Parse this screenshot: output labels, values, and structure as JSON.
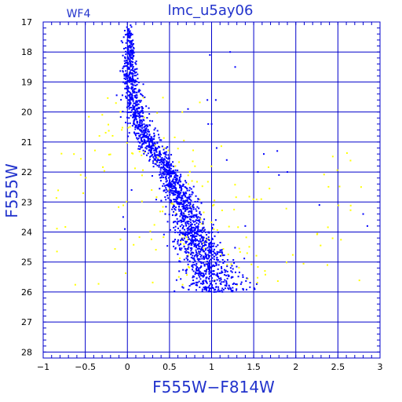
{
  "chart_data": {
    "type": "scatter",
    "title": "lmc_u5ay06",
    "panel_label": "WF4",
    "xlabel": "F555W−F814W",
    "ylabel": "F555W",
    "xlim": [
      -1,
      3
    ],
    "ylim": [
      28.2,
      17
    ],
    "y_inverted": true,
    "grid": true,
    "x_ticks": [
      -1,
      -0.5,
      0,
      0.5,
      1,
      1.5,
      2,
      2.5,
      3
    ],
    "x_tick_labels": [
      "−1",
      "−0.5",
      "0",
      "0.5",
      "1",
      "1.5",
      "2",
      "2.5",
      "3"
    ],
    "y_ticks": [
      17,
      18,
      19,
      20,
      21,
      22,
      23,
      24,
      25,
      26,
      27,
      28
    ],
    "y_tick_labels": [
      "17",
      "18",
      "19",
      "20",
      "21",
      "22",
      "23",
      "24",
      "25",
      "26",
      "27",
      "28"
    ],
    "colors": {
      "axes": "#0000cc",
      "main_stars": "#0000ff",
      "secondary_stars": "#ffff00",
      "text": "#2233cc"
    },
    "series": [
      {
        "color": "#0000ff",
        "points_ridge": [
          [
            0.0,
            17.1
          ],
          [
            0.02,
            17.6
          ],
          [
            0.03,
            18.0
          ],
          [
            0.02,
            18.5
          ],
          [
            0.04,
            19.0
          ],
          [
            0.06,
            19.5
          ],
          [
            0.1,
            20.0
          ],
          [
            0.16,
            20.5
          ],
          [
            0.26,
            21.0
          ],
          [
            0.38,
            21.5
          ],
          [
            0.48,
            22.0
          ],
          [
            0.58,
            22.5
          ],
          [
            0.64,
            23.0
          ],
          [
            0.7,
            23.5
          ],
          [
            0.78,
            24.0
          ],
          [
            0.86,
            24.5
          ],
          [
            0.94,
            25.0
          ],
          [
            1.02,
            25.5
          ],
          [
            1.1,
            25.9
          ]
        ],
        "scatter_spread": [
          [
            17.0,
            0.02
          ],
          [
            18.0,
            0.03
          ],
          [
            19.0,
            0.05
          ],
          [
            20.0,
            0.06
          ],
          [
            21.0,
            0.07
          ],
          [
            22.0,
            0.07
          ],
          [
            23.0,
            0.09
          ],
          [
            24.0,
            0.12
          ],
          [
            25.0,
            0.16
          ],
          [
            26.0,
            0.2
          ]
        ],
        "count": 1900,
        "outliers": [
          [
            0.98,
            18.1
          ],
          [
            1.22,
            18.0
          ],
          [
            1.28,
            18.5
          ],
          [
            0.95,
            19.6
          ],
          [
            1.05,
            19.6
          ],
          [
            0.96,
            20.4
          ],
          [
            1.0,
            20.4
          ],
          [
            0.72,
            19.9
          ],
          [
            1.06,
            21.2
          ],
          [
            1.18,
            21.6
          ],
          [
            1.62,
            21.4
          ],
          [
            1.78,
            21.3
          ],
          [
            1.8,
            22.1
          ],
          [
            1.55,
            22.0
          ],
          [
            1.9,
            22.0
          ],
          [
            2.28,
            23.1
          ],
          [
            2.8,
            23.4
          ],
          [
            2.85,
            23.8
          ],
          [
            0.05,
            22.6
          ],
          [
            -0.05,
            23.5
          ],
          [
            -0.03,
            23.9
          ],
          [
            0.45,
            23.4
          ],
          [
            1.05,
            23.6
          ],
          [
            1.4,
            23.8
          ]
        ]
      },
      {
        "color": "#ffff00",
        "count": 200,
        "region": {
          "x": [
            -0.9,
            2.8
          ],
          "y": [
            19.3,
            26.0
          ]
        }
      }
    ]
  }
}
